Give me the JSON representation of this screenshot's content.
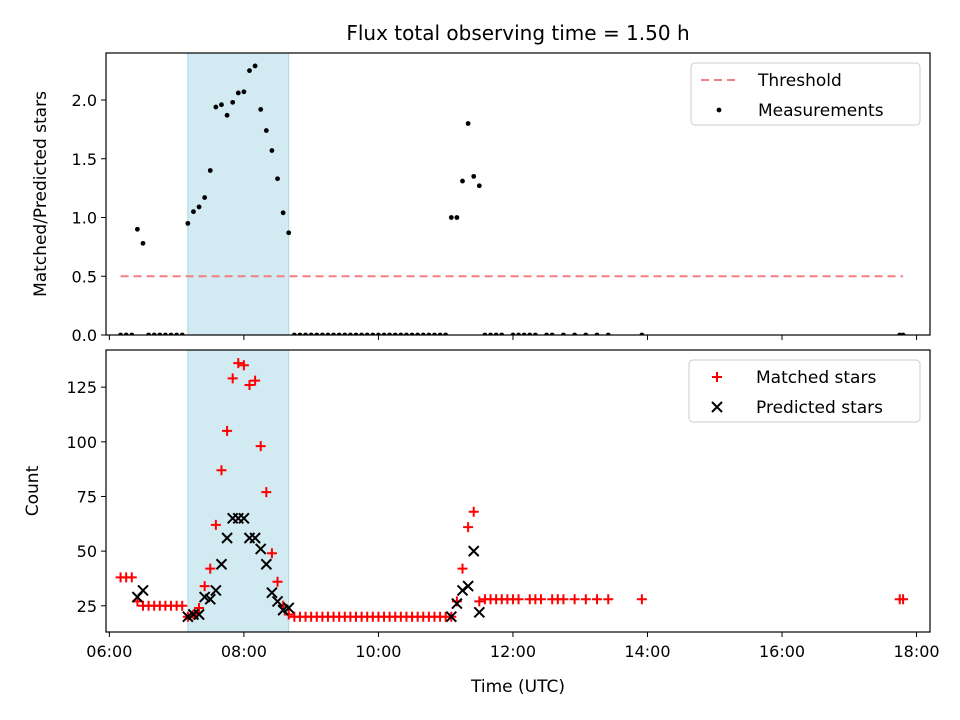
{
  "figure": {
    "title": "Flux total observing time = 1.50 h"
  },
  "chart_data": [
    {
      "type": "scatter",
      "panel": "top",
      "title": "Flux total observing time = 1.50 h",
      "xlabel": "",
      "ylabel": "Matched/Predicted stars",
      "xlim": [
        "05:57",
        "18:12"
      ],
      "ylim": [
        0,
        2.4
      ],
      "yticks": [
        "0.0",
        "0.5",
        "1.0",
        "1.5",
        "2.0"
      ],
      "legend_position": "upper right",
      "highlight_span": {
        "start": "07:10",
        "end": "08:40",
        "color": "#add8e6"
      },
      "series": [
        {
          "name": "Threshold",
          "kind": "dashed-line",
          "color": "#f08080",
          "points": [
            {
              "x": "06:10",
              "y": 0.5
            },
            {
              "x": "17:48",
              "y": 0.5
            }
          ]
        },
        {
          "name": "Measurements",
          "kind": "scatter",
          "color": "#000000",
          "points": [
            {
              "x": "06:10",
              "y": 0.0
            },
            {
              "x": "06:15",
              "y": 0.0
            },
            {
              "x": "06:20",
              "y": 0.0
            },
            {
              "x": "06:25",
              "y": 0.9
            },
            {
              "x": "06:30",
              "y": 0.78
            },
            {
              "x": "06:35",
              "y": 0.0
            },
            {
              "x": "06:40",
              "y": 0.0
            },
            {
              "x": "06:45",
              "y": 0.0
            },
            {
              "x": "06:50",
              "y": 0.0
            },
            {
              "x": "06:55",
              "y": 0.0
            },
            {
              "x": "07:00",
              "y": 0.0
            },
            {
              "x": "07:05",
              "y": 0.0
            },
            {
              "x": "07:10",
              "y": 0.95
            },
            {
              "x": "07:15",
              "y": 1.05
            },
            {
              "x": "07:20",
              "y": 1.09
            },
            {
              "x": "07:25",
              "y": 1.17
            },
            {
              "x": "07:30",
              "y": 1.4
            },
            {
              "x": "07:35",
              "y": 1.94
            },
            {
              "x": "07:40",
              "y": 1.96
            },
            {
              "x": "07:45",
              "y": 1.87
            },
            {
              "x": "07:50",
              "y": 1.98
            },
            {
              "x": "07:55",
              "y": 2.06
            },
            {
              "x": "08:00",
              "y": 2.07
            },
            {
              "x": "08:05",
              "y": 2.25
            },
            {
              "x": "08:10",
              "y": 2.29
            },
            {
              "x": "08:15",
              "y": 1.92
            },
            {
              "x": "08:20",
              "y": 1.74
            },
            {
              "x": "08:25",
              "y": 1.57
            },
            {
              "x": "08:30",
              "y": 1.33
            },
            {
              "x": "08:35",
              "y": 1.04
            },
            {
              "x": "08:40",
              "y": 0.87
            },
            {
              "x": "08:45",
              "y": 0.0
            },
            {
              "x": "08:50",
              "y": 0.0
            },
            {
              "x": "08:55",
              "y": 0.0
            },
            {
              "x": "09:00",
              "y": 0.0
            },
            {
              "x": "09:05",
              "y": 0.0
            },
            {
              "x": "09:10",
              "y": 0.0
            },
            {
              "x": "09:15",
              "y": 0.0
            },
            {
              "x": "09:20",
              "y": 0.0
            },
            {
              "x": "09:25",
              "y": 0.0
            },
            {
              "x": "09:30",
              "y": 0.0
            },
            {
              "x": "09:35",
              "y": 0.0
            },
            {
              "x": "09:40",
              "y": 0.0
            },
            {
              "x": "09:45",
              "y": 0.0
            },
            {
              "x": "09:50",
              "y": 0.0
            },
            {
              "x": "09:55",
              "y": 0.0
            },
            {
              "x": "10:00",
              "y": 0.0
            },
            {
              "x": "10:05",
              "y": 0.0
            },
            {
              "x": "10:10",
              "y": 0.0
            },
            {
              "x": "10:15",
              "y": 0.0
            },
            {
              "x": "10:20",
              "y": 0.0
            },
            {
              "x": "10:25",
              "y": 0.0
            },
            {
              "x": "10:30",
              "y": 0.0
            },
            {
              "x": "10:35",
              "y": 0.0
            },
            {
              "x": "10:40",
              "y": 0.0
            },
            {
              "x": "10:45",
              "y": 0.0
            },
            {
              "x": "10:50",
              "y": 0.0
            },
            {
              "x": "10:55",
              "y": 0.0
            },
            {
              "x": "11:00",
              "y": 0.0
            },
            {
              "x": "11:05",
              "y": 1.0
            },
            {
              "x": "11:10",
              "y": 1.0
            },
            {
              "x": "11:15",
              "y": 1.31
            },
            {
              "x": "11:20",
              "y": 1.8
            },
            {
              "x": "11:25",
              "y": 1.35
            },
            {
              "x": "11:30",
              "y": 1.27
            },
            {
              "x": "11:35",
              "y": 0.0
            },
            {
              "x": "11:40",
              "y": 0.0
            },
            {
              "x": "11:45",
              "y": 0.0
            },
            {
              "x": "11:50",
              "y": 0.0
            },
            {
              "x": "12:00",
              "y": 0.0
            },
            {
              "x": "12:05",
              "y": 0.0
            },
            {
              "x": "12:10",
              "y": 0.0
            },
            {
              "x": "12:15",
              "y": 0.0
            },
            {
              "x": "12:20",
              "y": 0.0
            },
            {
              "x": "12:30",
              "y": 0.0
            },
            {
              "x": "12:35",
              "y": 0.0
            },
            {
              "x": "12:45",
              "y": 0.0
            },
            {
              "x": "12:55",
              "y": 0.0
            },
            {
              "x": "13:05",
              "y": 0.0
            },
            {
              "x": "13:15",
              "y": 0.0
            },
            {
              "x": "13:25",
              "y": 0.0
            },
            {
              "x": "13:55",
              "y": 0.0
            },
            {
              "x": "17:45",
              "y": 0.0
            },
            {
              "x": "17:48",
              "y": 0.0
            }
          ]
        }
      ]
    },
    {
      "type": "scatter",
      "panel": "bottom",
      "xlabel": "Time (UTC)",
      "ylabel": "Count",
      "xlim": [
        "05:57",
        "18:12"
      ],
      "ylim": [
        13,
        142
      ],
      "xticks": [
        "06:00",
        "08:00",
        "10:00",
        "12:00",
        "14:00",
        "16:00",
        "18:00"
      ],
      "yticks": [
        "25",
        "50",
        "75",
        "100",
        "125"
      ],
      "legend_position": "upper right",
      "highlight_span": {
        "start": "07:10",
        "end": "08:40",
        "color": "#add8e6"
      },
      "series": [
        {
          "name": "Matched stars",
          "kind": "plus",
          "color": "#ff0000",
          "points": [
            {
              "x": "06:10",
              "y": 38
            },
            {
              "x": "06:15",
              "y": 38
            },
            {
              "x": "06:20",
              "y": 38
            },
            {
              "x": "06:25",
              "y": 27
            },
            {
              "x": "06:30",
              "y": 25
            },
            {
              "x": "06:35",
              "y": 25
            },
            {
              "x": "06:40",
              "y": 25
            },
            {
              "x": "06:45",
              "y": 25
            },
            {
              "x": "06:50",
              "y": 25
            },
            {
              "x": "06:55",
              "y": 25
            },
            {
              "x": "07:00",
              "y": 25
            },
            {
              "x": "07:05",
              "y": 25
            },
            {
              "x": "07:10",
              "y": 20
            },
            {
              "x": "07:15",
              "y": 21
            },
            {
              "x": "07:20",
              "y": 24
            },
            {
              "x": "07:25",
              "y": 34
            },
            {
              "x": "07:30",
              "y": 42
            },
            {
              "x": "07:35",
              "y": 62
            },
            {
              "x": "07:40",
              "y": 87
            },
            {
              "x": "07:45",
              "y": 105
            },
            {
              "x": "07:50",
              "y": 129
            },
            {
              "x": "07:55",
              "y": 136
            },
            {
              "x": "08:00",
              "y": 135
            },
            {
              "x": "08:05",
              "y": 126
            },
            {
              "x": "08:10",
              "y": 128
            },
            {
              "x": "08:15",
              "y": 98
            },
            {
              "x": "08:20",
              "y": 77
            },
            {
              "x": "08:25",
              "y": 49
            },
            {
              "x": "08:30",
              "y": 36
            },
            {
              "x": "08:35",
              "y": 25
            },
            {
              "x": "08:40",
              "y": 21
            },
            {
              "x": "08:45",
              "y": 20
            },
            {
              "x": "08:50",
              "y": 20
            },
            {
              "x": "08:55",
              "y": 20
            },
            {
              "x": "09:00",
              "y": 20
            },
            {
              "x": "09:05",
              "y": 20
            },
            {
              "x": "09:10",
              "y": 20
            },
            {
              "x": "09:15",
              "y": 20
            },
            {
              "x": "09:20",
              "y": 20
            },
            {
              "x": "09:25",
              "y": 20
            },
            {
              "x": "09:30",
              "y": 20
            },
            {
              "x": "09:35",
              "y": 20
            },
            {
              "x": "09:40",
              "y": 20
            },
            {
              "x": "09:45",
              "y": 20
            },
            {
              "x": "09:50",
              "y": 20
            },
            {
              "x": "09:55",
              "y": 20
            },
            {
              "x": "10:00",
              "y": 20
            },
            {
              "x": "10:05",
              "y": 20
            },
            {
              "x": "10:10",
              "y": 20
            },
            {
              "x": "10:15",
              "y": 20
            },
            {
              "x": "10:20",
              "y": 20
            },
            {
              "x": "10:25",
              "y": 20
            },
            {
              "x": "10:30",
              "y": 20
            },
            {
              "x": "10:35",
              "y": 20
            },
            {
              "x": "10:40",
              "y": 20
            },
            {
              "x": "10:45",
              "y": 20
            },
            {
              "x": "10:50",
              "y": 20
            },
            {
              "x": "10:55",
              "y": 20
            },
            {
              "x": "11:00",
              "y": 20
            },
            {
              "x": "11:05",
              "y": 20
            },
            {
              "x": "11:10",
              "y": 27
            },
            {
              "x": "11:15",
              "y": 42
            },
            {
              "x": "11:20",
              "y": 61
            },
            {
              "x": "11:25",
              "y": 68
            },
            {
              "x": "11:30",
              "y": 27
            },
            {
              "x": "11:35",
              "y": 28
            },
            {
              "x": "11:40",
              "y": 28
            },
            {
              "x": "11:45",
              "y": 28
            },
            {
              "x": "11:50",
              "y": 28
            },
            {
              "x": "11:55",
              "y": 28
            },
            {
              "x": "12:00",
              "y": 28
            },
            {
              "x": "12:05",
              "y": 28
            },
            {
              "x": "12:15",
              "y": 28
            },
            {
              "x": "12:20",
              "y": 28
            },
            {
              "x": "12:25",
              "y": 28
            },
            {
              "x": "12:35",
              "y": 28
            },
            {
              "x": "12:40",
              "y": 28
            },
            {
              "x": "12:45",
              "y": 28
            },
            {
              "x": "12:55",
              "y": 28
            },
            {
              "x": "13:05",
              "y": 28
            },
            {
              "x": "13:15",
              "y": 28
            },
            {
              "x": "13:25",
              "y": 28
            },
            {
              "x": "13:55",
              "y": 28
            },
            {
              "x": "17:45",
              "y": 28
            },
            {
              "x": "17:48",
              "y": 28
            }
          ]
        },
        {
          "name": "Predicted stars",
          "kind": "x",
          "color": "#000000",
          "points": [
            {
              "x": "06:25",
              "y": 29
            },
            {
              "x": "06:30",
              "y": 32
            },
            {
              "x": "07:10",
              "y": 20
            },
            {
              "x": "07:15",
              "y": 21
            },
            {
              "x": "07:20",
              "y": 21
            },
            {
              "x": "07:25",
              "y": 29
            },
            {
              "x": "07:30",
              "y": 28
            },
            {
              "x": "07:35",
              "y": 32
            },
            {
              "x": "07:40",
              "y": 44
            },
            {
              "x": "07:45",
              "y": 56
            },
            {
              "x": "07:50",
              "y": 65
            },
            {
              "x": "07:55",
              "y": 65
            },
            {
              "x": "08:00",
              "y": 65
            },
            {
              "x": "08:05",
              "y": 56
            },
            {
              "x": "08:10",
              "y": 56
            },
            {
              "x": "08:15",
              "y": 51
            },
            {
              "x": "08:20",
              "y": 44
            },
            {
              "x": "08:25",
              "y": 31
            },
            {
              "x": "08:30",
              "y": 27
            },
            {
              "x": "08:35",
              "y": 23
            },
            {
              "x": "08:40",
              "y": 24
            },
            {
              "x": "11:05",
              "y": 20
            },
            {
              "x": "11:10",
              "y": 26
            },
            {
              "x": "11:15",
              "y": 32
            },
            {
              "x": "11:20",
              "y": 34
            },
            {
              "x": "11:25",
              "y": 50
            },
            {
              "x": "11:30",
              "y": 22
            }
          ]
        }
      ]
    }
  ]
}
